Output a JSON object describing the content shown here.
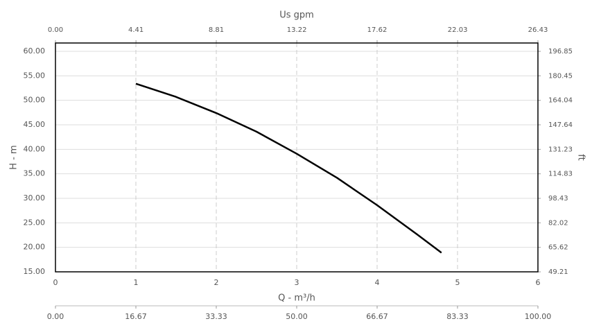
{
  "chart_data": {
    "type": "line",
    "x": [
      1,
      1.5,
      2,
      2.5,
      3,
      3.5,
      4,
      4.5,
      4.8
    ],
    "values": [
      53.4,
      50.7,
      47.4,
      43.6,
      39.1,
      34.2,
      28.6,
      22.6,
      18.9
    ],
    "color": "#000000",
    "xlabel": "Q - m³/h",
    "ylabel": "H - m",
    "x2label": "Us gpm",
    "y2label": "ft",
    "xlim": [
      0,
      6
    ],
    "xticks": [
      0,
      1,
      2,
      3,
      4,
      5,
      6
    ],
    "ylim": [
      15,
      61.7
    ],
    "yticks": [
      {
        "value": 15,
        "label": "15.00"
      },
      {
        "value": 20,
        "label": "20.00"
      },
      {
        "value": 25,
        "label": "25.00"
      },
      {
        "value": 30,
        "label": "30.00"
      },
      {
        "value": 35,
        "label": "35.00"
      },
      {
        "value": 40,
        "label": "40.00"
      },
      {
        "value": 45,
        "label": "45.00"
      },
      {
        "value": 50,
        "label": "50.00"
      },
      {
        "value": 55,
        "label": "55.00"
      },
      {
        "value": 60,
        "label": "60.00"
      }
    ],
    "x2lim": [
      0,
      26.43
    ],
    "x2ticks": [
      {
        "value": 0,
        "label": "0.00"
      },
      4.41,
      8.81,
      13.22,
      17.62,
      22.03,
      26.43
    ],
    "y2lim": [
      49.21,
      202.43
    ],
    "y2ticks": [
      49.21,
      65.62,
      82.02,
      98.43,
      114.83,
      131.23,
      147.64,
      164.04,
      180.45,
      196.85
    ],
    "x3lim": [
      0,
      100
    ],
    "x3ticks": [
      {
        "value": 0,
        "label": "0.00"
      },
      16.67,
      33.33,
      {
        "value": 50,
        "label": "50.00"
      },
      66.67,
      83.33,
      {
        "value": 100,
        "label": "100.00"
      }
    ],
    "grid": true
  }
}
